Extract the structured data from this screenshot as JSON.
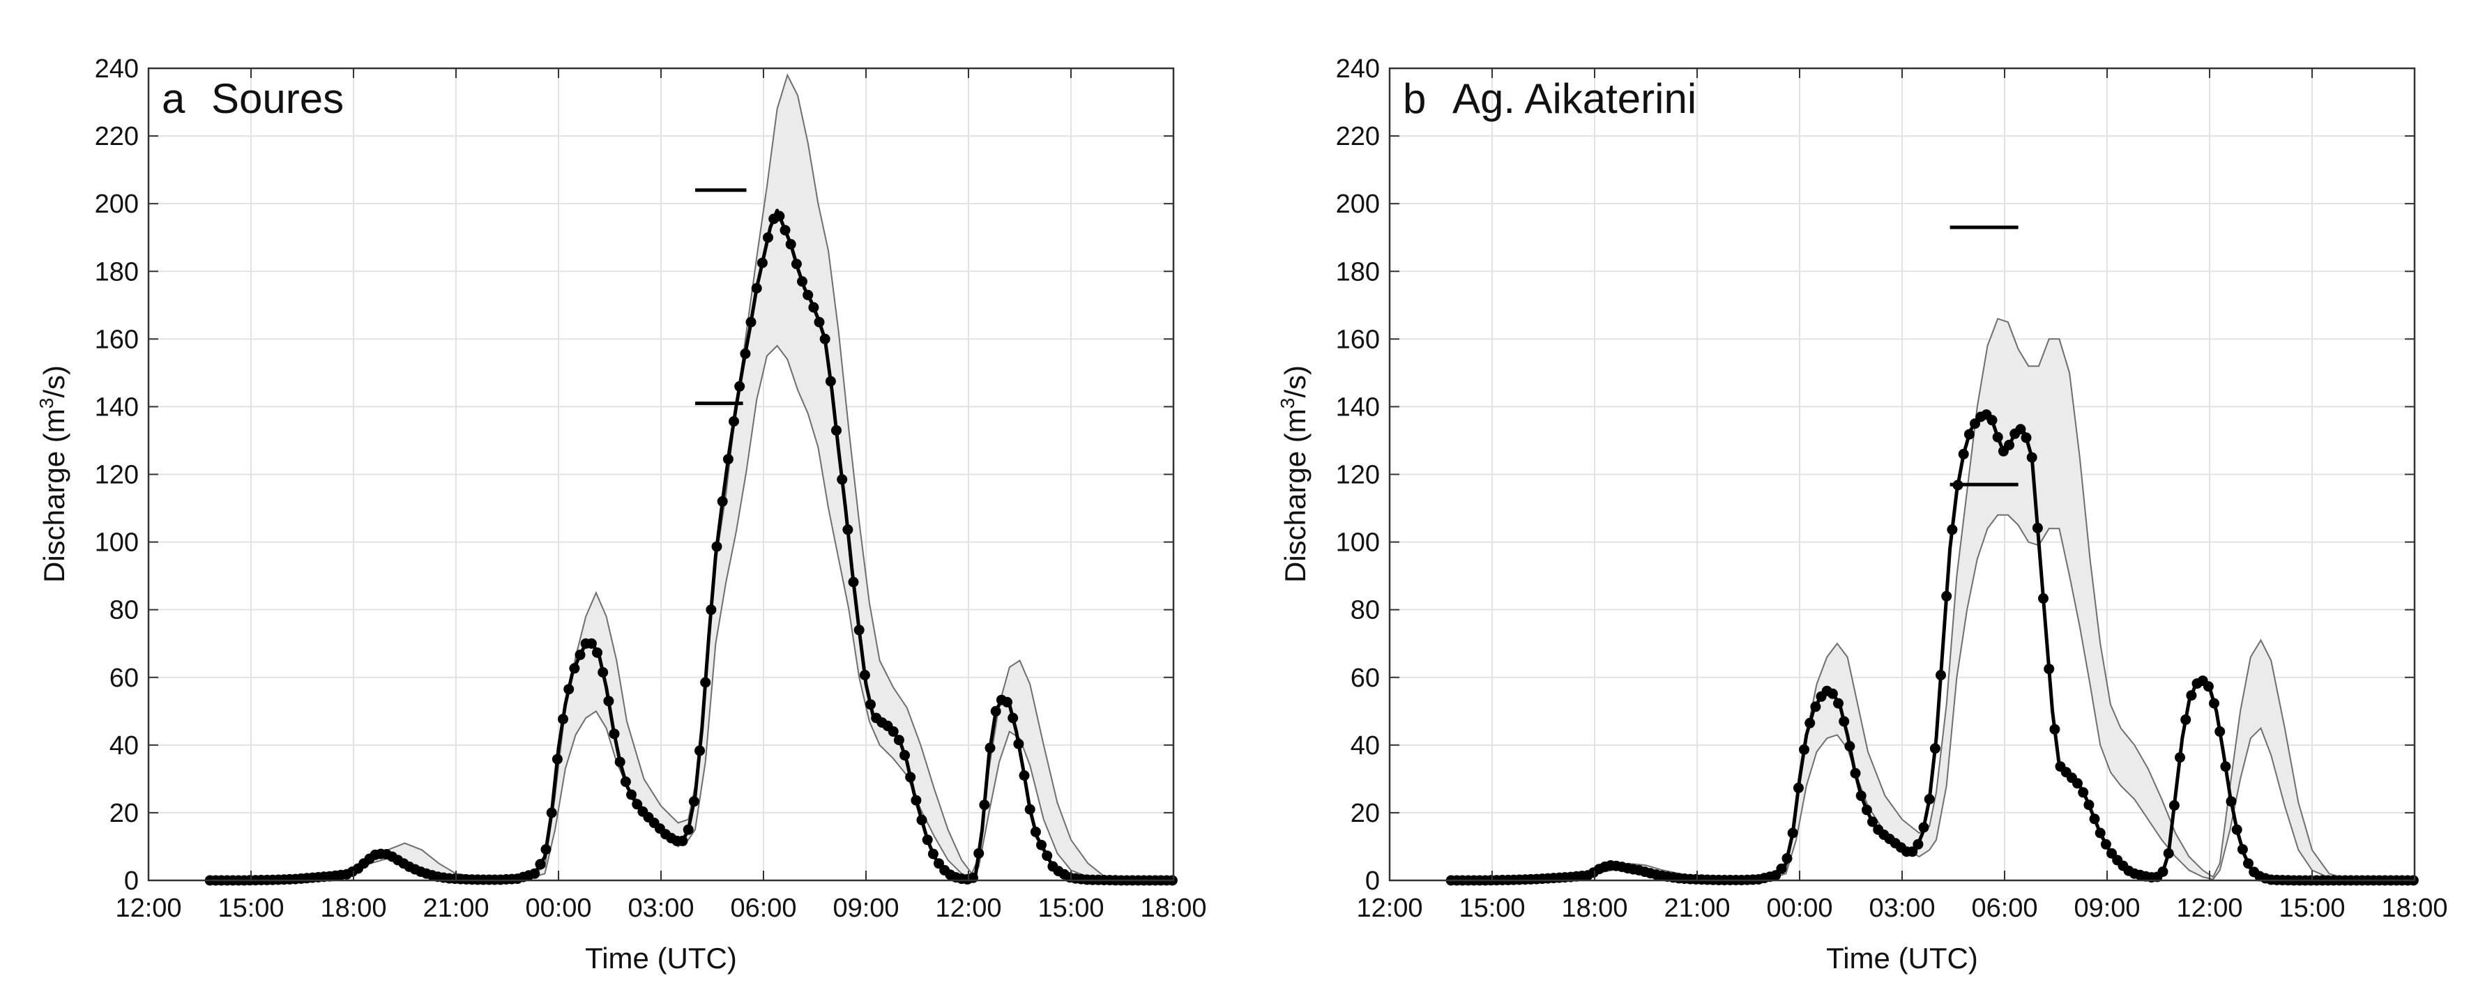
{
  "chart_data": [
    {
      "type": "line",
      "panel_letter": "a",
      "title": "Soures",
      "xlabel": "Time (UTC)",
      "ylabel": "Discharge (m³/s)",
      "ylabel_parts": [
        "Discharge (m",
        "3",
        "/s)"
      ],
      "x_unit": "hours since 12:00 on first day",
      "xlim": [
        0,
        30
      ],
      "ylim": [
        0,
        240
      ],
      "xtick_values": [
        0,
        3,
        6,
        9,
        12,
        15,
        18,
        21,
        24,
        27,
        30
      ],
      "xtick_labels": [
        "12:00",
        "15:00",
        "18:00",
        "21:00",
        "00:00",
        "03:00",
        "06:00",
        "09:00",
        "12:00",
        "15:00",
        "18:00"
      ],
      "ytick_values": [
        0,
        20,
        40,
        60,
        80,
        100,
        120,
        140,
        160,
        180,
        200,
        220,
        240
      ],
      "ytick_labels": [
        "0",
        "20",
        "40",
        "60",
        "80",
        "100",
        "120",
        "140",
        "160",
        "180",
        "200",
        "220",
        "240"
      ],
      "grid": true,
      "series": [
        {
          "role": "simulated-median",
          "color": "#000000",
          "x": [
            1.8,
            2.3,
            2.8,
            3.3,
            3.8,
            4.3,
            4.8,
            5.3,
            5.8,
            6.1,
            6.3,
            6.6,
            6.9,
            7.1,
            7.3,
            7.6,
            7.9,
            8.2,
            8.5,
            8.8,
            9.3,
            9.8,
            10.3,
            10.8,
            11.3,
            11.6,
            11.8,
            12.0,
            12.2,
            12.4,
            12.6,
            12.8,
            13.0,
            13.2,
            13.4,
            13.6,
            13.8,
            14.0,
            14.2,
            14.4,
            14.6,
            14.8,
            15.0,
            15.2,
            15.4,
            15.6,
            15.8,
            16.0,
            16.2,
            16.4,
            16.6,
            16.8,
            17.0,
            17.2,
            17.4,
            17.6,
            17.8,
            18.0,
            18.2,
            18.4,
            18.6,
            18.8,
            19.0,
            19.2,
            19.4,
            19.6,
            19.8,
            20.0,
            20.2,
            20.4,
            20.6,
            20.8,
            21.0,
            21.2,
            21.4,
            21.6,
            21.8,
            22.0,
            22.2,
            22.4,
            22.6,
            22.8,
            23.0,
            23.2,
            23.4,
            23.6,
            23.8,
            24.0,
            24.2,
            24.4,
            24.6,
            24.8,
            25.0,
            25.2,
            25.4,
            25.6,
            25.8,
            26.0,
            26.5,
            27.0,
            27.5,
            28.0,
            28.5,
            29.0,
            29.5,
            30.0
          ],
          "y": [
            0,
            0,
            0,
            0.1,
            0.2,
            0.4,
            0.8,
            1.2,
            1.8,
            3.2,
            5,
            7.5,
            8,
            7.2,
            6,
            4.2,
            2.8,
            1.8,
            1,
            0.6,
            0.3,
            0.2,
            0.2,
            0.5,
            2,
            7,
            20,
            39,
            52,
            61,
            66,
            70,
            70,
            66,
            57,
            45,
            35,
            28,
            24,
            21,
            19,
            17,
            15,
            13,
            12,
            11,
            15,
            25,
            45,
            72,
            96,
            112,
            127,
            140,
            152,
            163,
            175,
            184,
            193,
            198,
            193,
            188,
            181,
            175,
            171,
            166,
            160,
            145,
            127,
            110,
            91,
            74,
            58,
            49,
            47,
            46,
            44,
            41,
            35,
            26,
            19,
            12,
            7,
            4,
            2,
            1,
            0.5,
            0.3,
            1,
            15,
            37,
            50,
            54,
            52,
            44,
            33,
            21,
            13,
            3.5,
            0.7,
            0.2,
            0.1,
            0,
            0,
            0,
            0
          ],
          "marker_x_from": 6.0,
          "marker_x_to": 28.0
        },
        {
          "role": "uncertainty-band",
          "color": "#ebebeb",
          "x": [
            1.8,
            5.3,
            6.0,
            6.5,
            7.0,
            7.5,
            8.0,
            8.5,
            9.0,
            10.0,
            11.0,
            11.6,
            11.9,
            12.2,
            12.5,
            12.8,
            13.1,
            13.4,
            13.7,
            14.0,
            14.5,
            15.0,
            15.5,
            15.8,
            16.0,
            16.3,
            16.6,
            16.9,
            17.2,
            17.5,
            17.8,
            18.1,
            18.4,
            18.7,
            19.0,
            19.3,
            19.6,
            19.9,
            20.2,
            20.5,
            20.8,
            21.1,
            21.4,
            21.8,
            22.2,
            22.6,
            23.0,
            23.4,
            23.8,
            24.1,
            24.3,
            24.6,
            24.9,
            25.2,
            25.5,
            25.8,
            26.2,
            26.6,
            27.0,
            27.5,
            28.0,
            30.0
          ],
          "y_low": [
            0,
            1,
            3,
            5,
            6.5,
            5,
            3,
            1.5,
            0.5,
            0.1,
            0.2,
            2,
            15,
            33,
            43,
            48,
            50,
            45,
            35,
            28,
            21,
            15,
            10,
            12,
            15,
            35,
            70,
            88,
            103,
            121,
            142,
            155,
            158,
            154,
            145,
            138,
            128,
            110,
            95,
            80,
            60,
            47,
            40,
            36,
            31,
            21,
            13,
            6,
            2,
            0.5,
            4,
            20,
            35,
            44,
            42,
            34,
            18,
            8,
            3,
            1,
            0.2,
            0
          ],
          "y_high": [
            0,
            1.5,
            3.5,
            6,
            9,
            11,
            9,
            5,
            2,
            0.5,
            0.5,
            4,
            25,
            51,
            66,
            78,
            85,
            78,
            65,
            47,
            30,
            22,
            17,
            18,
            28,
            58,
            94,
            114,
            140,
            162,
            184,
            205,
            228,
            238,
            232,
            218,
            200,
            186,
            162,
            133,
            106,
            82,
            65,
            57,
            51,
            40,
            27,
            15,
            6,
            2,
            7,
            33,
            52,
            63,
            65,
            58,
            40,
            23,
            12,
            5,
            1,
            0
          ]
        }
      ],
      "reference_lines": [
        {
          "role": "upper-bar",
          "x_start": 16.0,
          "x_end": 17.5,
          "y": 204
        },
        {
          "role": "lower-bar",
          "x_start": 16.0,
          "x_end": 17.4,
          "y": 141
        }
      ]
    },
    {
      "type": "line",
      "panel_letter": "b",
      "title": "Ag. Aikaterini",
      "xlabel": "Time (UTC)",
      "ylabel": "Discharge (m³/s)",
      "ylabel_parts": [
        "Discharge (m",
        "3",
        "/s)"
      ],
      "x_unit": "hours since 12:00 on first day",
      "xlim": [
        0,
        30
      ],
      "ylim": [
        0,
        240
      ],
      "xtick_values": [
        0,
        3,
        6,
        9,
        12,
        15,
        18,
        21,
        24,
        27,
        30
      ],
      "xtick_labels": [
        "12:00",
        "15:00",
        "18:00",
        "21:00",
        "00:00",
        "03:00",
        "06:00",
        "09:00",
        "12:00",
        "15:00",
        "18:00"
      ],
      "ytick_values": [
        0,
        20,
        40,
        60,
        80,
        100,
        120,
        140,
        160,
        180,
        200,
        220,
        240
      ],
      "ytick_labels": [
        "0",
        "20",
        "40",
        "60",
        "80",
        "100",
        "120",
        "140",
        "160",
        "180",
        "200",
        "220",
        "240"
      ],
      "grid": true,
      "series": [
        {
          "role": "simulated-median",
          "color": "#000000",
          "x": [
            1.8,
            2.3,
            2.8,
            3.3,
            3.8,
            4.3,
            4.8,
            5.3,
            5.8,
            6.0,
            6.2,
            6.5,
            6.8,
            7.0,
            7.3,
            7.6,
            7.9,
            8.2,
            8.5,
            8.8,
            9.3,
            9.8,
            10.3,
            10.8,
            11.3,
            11.6,
            11.8,
            12.0,
            12.2,
            12.4,
            12.6,
            12.8,
            13.0,
            13.2,
            13.4,
            13.6,
            13.8,
            14.0,
            14.2,
            14.4,
            14.6,
            14.8,
            15.0,
            15.2,
            15.4,
            15.6,
            15.8,
            16.0,
            16.2,
            16.4,
            16.6,
            16.8,
            17.0,
            17.2,
            17.4,
            17.6,
            17.8,
            18.0,
            18.2,
            18.4,
            18.6,
            18.8,
            19.0,
            19.2,
            19.4,
            19.6,
            19.8,
            20.0,
            20.2,
            20.4,
            20.6,
            20.8,
            21.0,
            21.2,
            21.4,
            21.6,
            21.8,
            22.0,
            22.2,
            22.4,
            22.6,
            22.8,
            23.0,
            23.2,
            23.4,
            23.6,
            23.8,
            24.0,
            24.2,
            24.4,
            24.6,
            24.8,
            25.0,
            25.2,
            25.4,
            25.6,
            25.8,
            26.0,
            26.5,
            27.0,
            27.5,
            28.0,
            28.5,
            29.0,
            29.5,
            30.0
          ],
          "y": [
            0,
            0,
            0,
            0.1,
            0.2,
            0.4,
            0.7,
            1,
            1.5,
            2.5,
            3.8,
            4.5,
            4,
            3.5,
            3,
            2.2,
            1.5,
            1,
            0.6,
            0.4,
            0.2,
            0.1,
            0.1,
            0.3,
            1.5,
            5,
            14,
            30,
            43,
            50,
            54,
            56,
            55,
            51,
            43,
            33,
            25,
            20,
            16,
            14,
            12.5,
            11,
            9.5,
            8,
            9,
            14,
            24,
            42,
            70,
            98,
            115,
            126,
            133,
            136,
            138,
            137,
            131,
            126,
            130,
            134,
            132,
            125,
            100,
            75,
            50,
            34,
            32,
            30,
            28,
            24,
            19,
            14,
            10,
            7,
            5,
            3,
            2,
            1.5,
            1,
            0.8,
            1.5,
            8,
            25,
            42,
            53,
            58,
            59,
            57,
            50,
            38,
            25,
            15,
            8,
            3.5,
            1.5,
            0.7,
            0.2,
            0.1,
            0,
            0,
            0,
            0,
            0,
            0,
            0,
            0
          ],
          "marker_x_from": 6.0,
          "marker_x_to": 28.0
        },
        {
          "role": "uncertainty-band",
          "color": "#ebebeb",
          "x": [
            1.8,
            5.3,
            6.0,
            6.5,
            7.0,
            7.5,
            8.0,
            8.5,
            9.0,
            10.0,
            11.0,
            11.6,
            11.9,
            12.2,
            12.5,
            12.8,
            13.1,
            13.4,
            13.7,
            14.0,
            14.5,
            15.0,
            15.5,
            15.8,
            16.0,
            16.3,
            16.6,
            16.9,
            17.2,
            17.5,
            17.8,
            18.1,
            18.4,
            18.7,
            19.0,
            19.3,
            19.6,
            19.9,
            20.2,
            20.5,
            20.8,
            21.1,
            21.4,
            21.8,
            22.2,
            22.6,
            23.0,
            23.4,
            23.8,
            24.1,
            24.3,
            24.6,
            24.9,
            25.2,
            25.5,
            25.8,
            26.2,
            26.6,
            27.0,
            27.5,
            28.0,
            30.0
          ],
          "y_low": [
            0,
            1,
            2,
            3,
            3.5,
            3,
            2,
            1,
            0.3,
            0.1,
            0.2,
            2,
            12,
            28,
            38,
            42,
            43,
            39,
            30,
            22,
            14,
            10,
            7,
            9,
            12,
            28,
            60,
            80,
            95,
            104,
            108,
            108,
            105,
            100,
            99,
            104,
            104,
            90,
            75,
            58,
            40,
            32,
            28,
            24,
            18,
            12,
            7,
            3,
            1,
            0.3,
            3,
            15,
            30,
            42,
            45,
            37,
            22,
            9,
            3,
            0.8,
            0.1,
            0
          ],
          "y_high": [
            0,
            1.2,
            2.5,
            4.5,
            5,
            4.5,
            3,
            2,
            0.8,
            0.3,
            0.5,
            3,
            20,
            43,
            58,
            66,
            70,
            66,
            52,
            38,
            25,
            18,
            14,
            16,
            26,
            52,
            90,
            115,
            140,
            158,
            166,
            165,
            157,
            152,
            152,
            160,
            160,
            150,
            125,
            95,
            70,
            52,
            45,
            40,
            33,
            24,
            14,
            7,
            3,
            1,
            5,
            28,
            50,
            66,
            71,
            65,
            45,
            23,
            9,
            2,
            0.5,
            0
          ]
        }
      ],
      "reference_lines": [
        {
          "role": "upper-bar",
          "x_start": 16.4,
          "x_end": 18.4,
          "y": 193
        },
        {
          "role": "lower-bar",
          "x_start": 16.4,
          "x_end": 18.4,
          "y": 117
        }
      ]
    }
  ]
}
